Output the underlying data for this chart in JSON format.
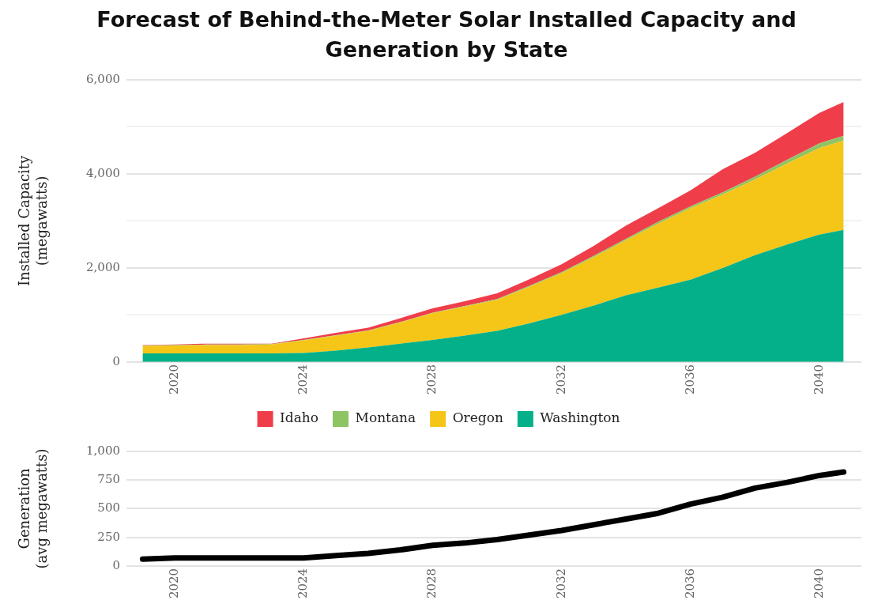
{
  "chart_data": [
    {
      "type": "area",
      "title": "Forecast of Behind-the-Meter Solar Installed Capacity and Generation by State",
      "ylabel": "Installed Capacity\n(megawatts)",
      "stacked": true,
      "legend": "bottom",
      "grid": "y",
      "marker": "none",
      "x": [
        2019,
        2020,
        2021,
        2022,
        2023,
        2024,
        2025,
        2026,
        2027,
        2028,
        2029,
        2030,
        2031,
        2032,
        2033,
        2034,
        2035,
        2036,
        2037,
        2038,
        2039,
        2040,
        2040.75
      ],
      "xlim": [
        2018.5,
        2041.3
      ],
      "xticks": [
        2020,
        2024,
        2028,
        2032,
        2036,
        2040
      ],
      "ylim": [
        0,
        6000
      ],
      "yticks": [
        {
          "value": 0,
          "label": "0"
        },
        {
          "value": 1000,
          "label": null
        },
        {
          "value": 2000,
          "label": "2,000"
        },
        {
          "value": 3000,
          "label": null
        },
        {
          "value": 4000,
          "label": "4,000"
        },
        {
          "value": 5000,
          "label": null
        },
        {
          "value": 6000,
          "label": "6,000"
        }
      ],
      "series": [
        {
          "name": "Washington",
          "color": "#03b089",
          "values": [
            180,
            180,
            180,
            180,
            180,
            190,
            240,
            310,
            390,
            470,
            560,
            660,
            820,
            1000,
            1200,
            1420,
            1580,
            1750,
            2000,
            2270,
            2500,
            2710,
            2810
          ]
        },
        {
          "name": "Oregon",
          "color": "#f5c518",
          "values": [
            160,
            170,
            180,
            180,
            190,
            270,
            320,
            350,
            450,
            570,
            620,
            660,
            780,
            890,
            1030,
            1170,
            1360,
            1520,
            1560,
            1610,
            1720,
            1840,
            1900
          ]
        },
        {
          "name": "Montana",
          "color": "#8fc464",
          "values": [
            10,
            10,
            10,
            10,
            10,
            10,
            10,
            10,
            10,
            10,
            10,
            20,
            20,
            20,
            30,
            30,
            40,
            40,
            50,
            60,
            80,
            100,
            100
          ]
        },
        {
          "name": "Idaho",
          "color": "#ef3e4a",
          "values": [
            10,
            10,
            20,
            20,
            10,
            30,
            50,
            60,
            80,
            90,
            100,
            120,
            140,
            170,
            210,
            280,
            290,
            340,
            490,
            510,
            570,
            650,
            720
          ]
        }
      ]
    },
    {
      "type": "line",
      "ylabel": "Generation\n(avg megawatts)",
      "grid": "y",
      "marker": "none",
      "line_style": "solid",
      "x": [
        2019,
        2020,
        2022,
        2024,
        2025,
        2026,
        2027,
        2028,
        2029,
        2030,
        2031,
        2032,
        2033,
        2034,
        2035,
        2036,
        2037,
        2038,
        2039,
        2040,
        2040.75
      ],
      "xlim": [
        2018.5,
        2041.3
      ],
      "xticks": [
        2020,
        2024,
        2028,
        2032,
        2036,
        2040
      ],
      "ylim": [
        0,
        1000
      ],
      "yticks": [
        {
          "value": 0,
          "label": "0"
        },
        {
          "value": 250,
          "label": "250"
        },
        {
          "value": 500,
          "label": "500"
        },
        {
          "value": 750,
          "label": "750"
        },
        {
          "value": 1000,
          "label": "1,000"
        }
      ],
      "series": [
        {
          "color": "#000000",
          "values": [
            60,
            70,
            70,
            70,
            90,
            110,
            140,
            180,
            200,
            230,
            270,
            310,
            360,
            410,
            460,
            540,
            600,
            680,
            730,
            790,
            820
          ]
        }
      ]
    }
  ]
}
